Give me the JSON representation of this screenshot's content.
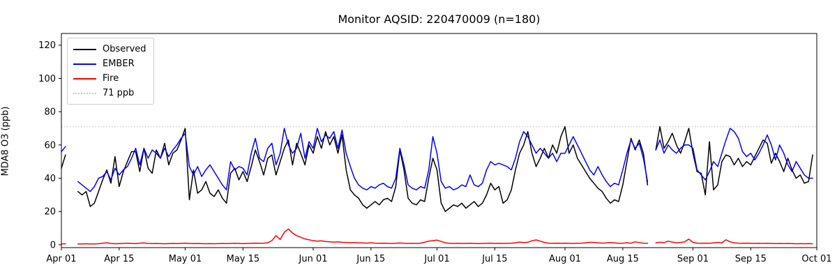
{
  "chart_data": {
    "type": "line",
    "title": "Monitor AQSID: 220470009 (n=180)",
    "ylabel": "MDA8 O3 (ppb)",
    "xlabel": "",
    "n_points": 180,
    "ylim": [
      -1.7,
      127
    ],
    "yticks": [
      0,
      20,
      40,
      60,
      80,
      100,
      120
    ],
    "x_total_days": 183,
    "x_start": "Apr 01",
    "x_end": "Oct 01",
    "grid": false,
    "legend_position": "upper left",
    "xticks": [
      {
        "day": 0,
        "label": "Apr 01"
      },
      {
        "day": 14,
        "label": "Apr 15"
      },
      {
        "day": 30,
        "label": "May 01"
      },
      {
        "day": 44,
        "label": "May 15"
      },
      {
        "day": 61,
        "label": "Jun 01"
      },
      {
        "day": 75,
        "label": "Jun 15"
      },
      {
        "day": 91,
        "label": "Jul 01"
      },
      {
        "day": 105,
        "label": "Jul 15"
      },
      {
        "day": 122,
        "label": "Aug 01"
      },
      {
        "day": 136,
        "label": "Aug 15"
      },
      {
        "day": 153,
        "label": "Sep 01"
      },
      {
        "day": 167,
        "label": "Sep 15"
      },
      {
        "day": 183,
        "label": "Oct 01"
      }
    ],
    "reference_line": {
      "label": "71 ppb",
      "value": 71,
      "color": "#c8c8c8",
      "style": "dotted"
    },
    "series": [
      {
        "name": "Observed",
        "color": "#000000",
        "values": [
          46,
          54,
          null,
          null,
          32,
          30,
          32,
          23,
          25,
          32,
          39,
          45,
          37,
          53,
          35,
          44,
          50,
          56,
          56,
          44,
          58,
          46,
          43,
          57,
          52,
          61,
          48,
          55,
          57,
          63,
          70,
          27,
          45,
          31,
          33,
          38,
          31,
          29,
          33,
          28,
          25,
          43,
          46,
          39,
          44,
          38,
          47,
          57,
          50,
          42,
          52,
          54,
          42,
          50,
          58,
          63,
          48,
          61,
          55,
          48,
          60,
          55,
          65,
          58,
          68,
          60,
          65,
          55,
          66,
          45,
          33,
          30,
          28,
          24,
          22,
          24,
          26,
          24,
          27,
          28,
          26,
          35,
          57,
          45,
          28,
          25,
          24,
          27,
          26,
          40,
          52,
          45,
          25,
          20,
          22,
          24,
          23,
          25,
          22,
          24,
          26,
          23,
          25,
          30,
          37,
          33,
          35,
          25,
          27,
          33,
          45,
          55,
          60,
          68,
          55,
          47,
          52,
          58,
          52,
          60,
          55,
          65,
          71,
          55,
          60,
          52,
          48,
          44,
          40,
          37,
          34,
          32,
          28,
          25,
          27,
          26,
          36,
          50,
          64,
          57,
          63,
          55,
          36,
          null,
          57,
          71,
          58,
          62,
          67,
          60,
          55,
          62,
          70,
          55,
          44,
          43,
          30,
          62,
          33,
          36,
          50,
          54,
          53,
          48,
          52,
          47,
          50,
          48,
          53,
          58,
          63,
          61,
          49,
          55,
          50,
          44,
          52,
          45,
          40,
          42,
          37,
          38,
          54
        ]
      },
      {
        "name": "EMBER",
        "color": "#0000ff",
        "values": [
          56,
          59,
          null,
          null,
          38,
          36,
          34,
          32,
          35,
          40,
          41,
          44,
          39,
          46,
          42,
          45,
          47,
          52,
          58,
          48,
          58,
          52,
          57,
          55,
          52,
          58,
          53,
          57,
          60,
          64,
          67,
          47,
          42,
          47,
          41,
          45,
          48,
          44,
          40,
          36,
          33,
          50,
          45,
          47,
          46,
          42,
          55,
          64,
          52,
          50,
          58,
          61,
          48,
          55,
          70,
          60,
          55,
          58,
          67,
          52,
          62,
          58,
          70,
          62,
          66,
          64,
          68,
          58,
          69,
          55,
          47,
          40,
          36,
          34,
          33,
          35,
          34,
          36,
          37,
          35,
          34,
          40,
          58,
          48,
          36,
          34,
          33,
          35,
          34,
          45,
          65,
          55,
          38,
          34,
          35,
          33,
          34,
          36,
          35,
          42,
          36,
          35,
          37,
          45,
          50,
          48,
          49,
          48,
          47,
          45,
          52,
          62,
          68,
          65,
          60,
          55,
          58,
          55,
          52,
          55,
          50,
          55,
          55,
          60,
          65,
          60,
          55,
          50,
          45,
          42,
          47,
          42,
          38,
          35,
          37,
          36,
          45,
          55,
          63,
          58,
          61,
          52,
          38,
          null,
          57,
          63,
          55,
          60,
          57,
          55,
          58,
          60,
          60,
          58,
          45,
          42,
          39,
          44,
          50,
          47,
          55,
          63,
          70,
          68,
          64,
          56,
          53,
          55,
          51,
          55,
          60,
          66,
          60,
          51,
          60,
          55,
          48,
          44,
          50,
          46,
          42,
          40,
          40
        ]
      },
      {
        "name": "Fire",
        "color": "#ff0000",
        "values": [
          0.5,
          0.6,
          null,
          null,
          0.5,
          0.5,
          0.6,
          0.5,
          0.5,
          0.6,
          1.0,
          1.2,
          0.8,
          0.6,
          0.7,
          0.8,
          1.0,
          0.8,
          0.7,
          1.0,
          1.1,
          0.8,
          0.7,
          0.8,
          0.7,
          0.6,
          0.7,
          0.8,
          0.7,
          0.8,
          1.0,
          0.8,
          0.7,
          0.8,
          0.7,
          0.6,
          0.7,
          0.6,
          0.7,
          0.8,
          0.7,
          0.8,
          0.9,
          0.8,
          0.7,
          0.8,
          0.9,
          1.0,
          0.9,
          1.0,
          1.2,
          2.5,
          5.5,
          3.2,
          7.5,
          9.5,
          7.0,
          5.5,
          4.5,
          3.5,
          3.0,
          2.5,
          2.2,
          2.4,
          2.0,
          1.8,
          1.6,
          1.8,
          1.5,
          1.3,
          1.2,
          1.3,
          1.2,
          1.1,
          1.0,
          1.2,
          1.0,
          0.9,
          1.0,
          0.9,
          0.8,
          0.9,
          1.1,
          0.9,
          0.8,
          0.9,
          0.8,
          1.0,
          1.5,
          2.2,
          2.5,
          2.8,
          2.0,
          1.2,
          0.9,
          0.8,
          0.9,
          0.8,
          0.8,
          0.9,
          0.8,
          0.7,
          0.8,
          0.9,
          1.0,
          0.8,
          0.9,
          0.8,
          0.9,
          1.0,
          1.2,
          1.6,
          1.3,
          1.5,
          2.4,
          2.9,
          2.2,
          1.4,
          1.0,
          0.9,
          1.0,
          0.9,
          1.0,
          0.9,
          0.8,
          0.9,
          1.0,
          1.2,
          1.5,
          1.4,
          1.2,
          1.0,
          1.1,
          1.3,
          1.1,
          0.9,
          1.0,
          1.2,
          1.0,
          1.8,
          1.3,
          1.0,
          0.9,
          null,
          1.2,
          1.5,
          1.3,
          2.2,
          1.6,
          1.2,
          1.4,
          1.8,
          3.4,
          1.5,
          1.0,
          0.9,
          1.0,
          0.9,
          1.1,
          1.4,
          1.2,
          3.0,
          1.8,
          1.2,
          1.0,
          0.9,
          1.0,
          0.9,
          0.8,
          0.9,
          0.8,
          0.9,
          0.8,
          0.7,
          0.8,
          0.7,
          0.8,
          0.7,
          0.6,
          0.7,
          0.6,
          0.7,
          0.6
        ]
      }
    ]
  }
}
